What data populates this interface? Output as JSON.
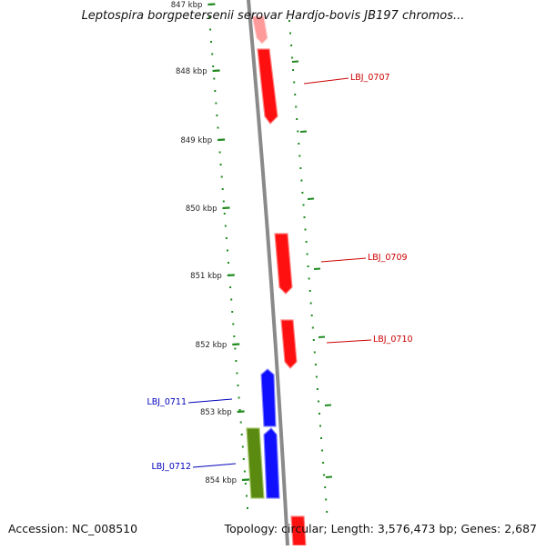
{
  "title": "Leptospira borgpetersenii serovar Hardjo-bovis JB197 chromos...",
  "footer": {
    "accession": "Accession: NC_008510",
    "summary": "Topology: circular; Length: 3,576,473 bp; Genes: 2,687"
  },
  "colors": {
    "backbone": "#8a8a8a",
    "ticks": "#1f8a1f",
    "forward_gene": "#ff1010",
    "reverse_gene": "#1010ff",
    "other_gene": "#5a8a10",
    "forward_label": "#cc0000",
    "reverse_label": "#0000bb"
  },
  "kbp_ticks": [
    "847 kbp",
    "848 kbp",
    "849 kbp",
    "850 kbp",
    "851 kbp",
    "852 kbp",
    "853 kbp",
    "854 kbp"
  ],
  "genes": [
    {
      "id": "g-top",
      "strand": "forward",
      "color": "forward_faded",
      "label": ""
    },
    {
      "id": "LBJ_0707",
      "strand": "forward",
      "color": "forward",
      "label": "LBJ_0707"
    },
    {
      "id": "LBJ_0709",
      "strand": "forward",
      "color": "forward",
      "label": "LBJ_0709"
    },
    {
      "id": "LBJ_0710",
      "strand": "forward",
      "color": "forward",
      "label": "LBJ_0710"
    },
    {
      "id": "LBJ_0711",
      "strand": "reverse",
      "color": "reverse",
      "label": "LBJ_0711"
    },
    {
      "id": "LBJ_0712",
      "strand": "reverse",
      "color": "reverse",
      "label": "LBJ_0712"
    },
    {
      "id": "g-other",
      "strand": "reverse",
      "color": "other",
      "label": ""
    },
    {
      "id": "g-bottom",
      "strand": "forward",
      "color": "forward",
      "label": ""
    }
  ]
}
